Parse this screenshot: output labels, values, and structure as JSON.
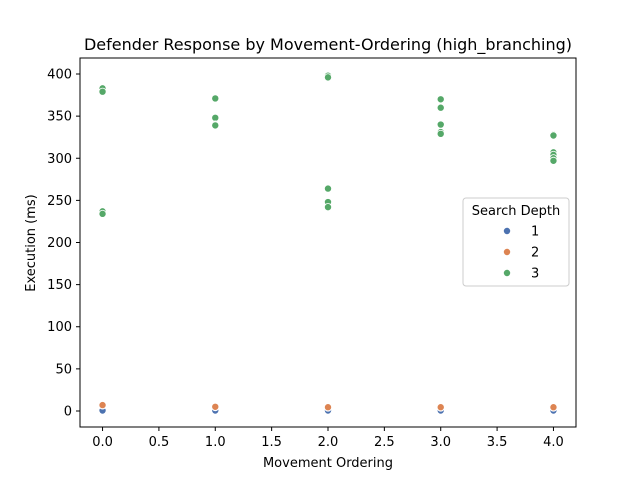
{
  "chart_data": {
    "type": "scatter",
    "title": "Defender Response by Movement-Ordering (high_branching)",
    "xlabel": "Movement Ordering",
    "ylabel": "Execution (ms)",
    "xlim": [
      -0.2,
      4.2
    ],
    "ylim": [
      -19,
      419
    ],
    "x_ticks": [
      "0.0",
      "0.5",
      "1.0",
      "1.5",
      "2.0",
      "2.5",
      "3.0",
      "3.5",
      "4.0"
    ],
    "x_tick_values": [
      0,
      0.5,
      1,
      1.5,
      2,
      2.5,
      3,
      3.5,
      4
    ],
    "y_ticks": [
      "0",
      "50",
      "100",
      "150",
      "200",
      "250",
      "300",
      "350",
      "400"
    ],
    "y_tick_values": [
      0,
      50,
      100,
      150,
      200,
      250,
      300,
      350,
      400
    ],
    "grid": false,
    "legend": {
      "title": "Search Depth",
      "placement": "right"
    },
    "series": [
      {
        "name": "1",
        "color": "#4c72b0",
        "points": [
          [
            0,
            0.4
          ],
          [
            0,
            0.6
          ],
          [
            1,
            0.4
          ],
          [
            1,
            0.6
          ],
          [
            2,
            0.4
          ],
          [
            2,
            0.6
          ],
          [
            3,
            0.4
          ],
          [
            3,
            0.6
          ],
          [
            4,
            0.4
          ],
          [
            4,
            0.6
          ]
        ]
      },
      {
        "name": "2",
        "color": "#dd8452",
        "points": [
          [
            0,
            6.5
          ],
          [
            0,
            7.0
          ],
          [
            1,
            4.5
          ],
          [
            1,
            5.0
          ],
          [
            2,
            4.0
          ],
          [
            2,
            4.5
          ],
          [
            3,
            4.0
          ],
          [
            3,
            4.5
          ],
          [
            4,
            4.0
          ],
          [
            4,
            4.5
          ]
        ]
      },
      {
        "name": "3",
        "color": "#55a868",
        "points": [
          [
            0,
            383
          ],
          [
            0,
            379
          ],
          [
            0,
            237
          ],
          [
            0,
            234
          ],
          [
            1,
            371
          ],
          [
            1,
            348
          ],
          [
            1,
            340
          ],
          [
            1,
            339
          ],
          [
            2,
            398
          ],
          [
            2,
            396
          ],
          [
            2,
            264
          ],
          [
            2,
            248
          ],
          [
            2,
            242
          ],
          [
            3,
            370
          ],
          [
            3,
            360
          ],
          [
            3,
            340
          ],
          [
            3,
            331
          ],
          [
            3,
            329
          ],
          [
            4,
            328
          ],
          [
            4,
            327
          ],
          [
            4,
            307
          ],
          [
            4,
            304
          ],
          [
            4,
            300
          ],
          [
            4,
            297
          ]
        ]
      }
    ]
  }
}
